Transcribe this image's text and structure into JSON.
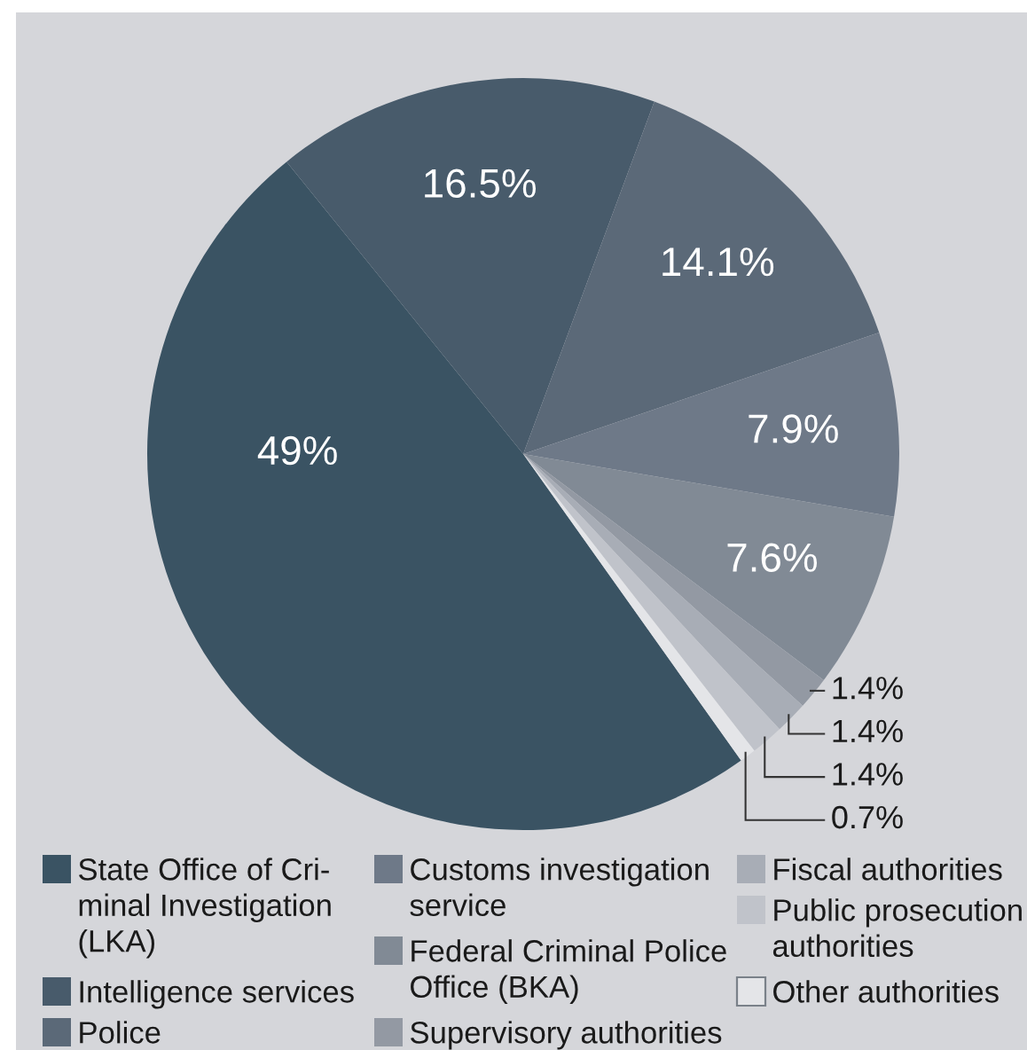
{
  "chart_data": {
    "type": "pie",
    "categories": [
      "State Office of Cri-\nminal Investigation\n(LKA)",
      "Intelligence services",
      "Police",
      "Customs investigation\nservice",
      "Federal Criminal Police\nOffice (BKA)",
      "Supervisory authorities",
      "Fiscal authorities",
      "Public prosecution\nauthorities",
      "Other authorities"
    ],
    "values": [
      49,
      16.5,
      14.1,
      7.9,
      7.6,
      1.4,
      1.4,
      1.4,
      0.7
    ],
    "colors": [
      "#3a5363",
      "#485b6b",
      "#5b6978",
      "#6e7988",
      "#818a95",
      "#9399a3",
      "#a8adb6",
      "#c0c3ca",
      "#e4e5e8"
    ],
    "value_labels": [
      "49%",
      "16.5%",
      "14.1%",
      "7.9%",
      "7.6%",
      "1.4%",
      "1.4%",
      "1.4%",
      "0.7%"
    ],
    "legend": "bottom"
  }
}
